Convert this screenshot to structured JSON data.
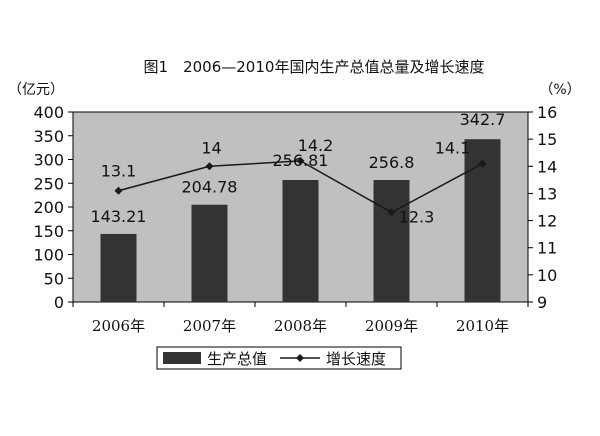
{
  "chart_data": {
    "type": "bar+line",
    "title": "图1　2006—2010年国内生产总值总量及增长速度",
    "left_axis_unit": "（亿元）",
    "right_axis_unit": "（%）",
    "categories": [
      "2006年",
      "2007年",
      "2008年",
      "2009年",
      "2010年"
    ],
    "left_ticks": [
      "0",
      "50",
      "100",
      "150",
      "200",
      "250",
      "300",
      "350",
      "400"
    ],
    "right_ticks": [
      "9",
      "10",
      "11",
      "12",
      "13",
      "14",
      "15",
      "16"
    ],
    "ylim_left": [
      0,
      400
    ],
    "ylim_right": [
      9,
      16
    ],
    "grid": false,
    "legend_position": "bottom",
    "colors": {
      "plot_background": "#c0c0c0",
      "bar": "#333333",
      "line": "#1a1a1a"
    },
    "series": [
      {
        "name": "生产总值",
        "kind": "bar",
        "axis": "left",
        "values": [
          143.21,
          204.78,
          256.81,
          256.8,
          342.7
        ],
        "labels": [
          "143.21",
          "204.78",
          "256.81",
          "256.8",
          "342.7"
        ]
      },
      {
        "name": "增长速度",
        "kind": "line",
        "axis": "right",
        "values": [
          13.1,
          14,
          14.2,
          12.3,
          14.1
        ],
        "labels": [
          "13.1",
          "14",
          "14.2",
          "12.3",
          "14.1"
        ]
      }
    ]
  }
}
